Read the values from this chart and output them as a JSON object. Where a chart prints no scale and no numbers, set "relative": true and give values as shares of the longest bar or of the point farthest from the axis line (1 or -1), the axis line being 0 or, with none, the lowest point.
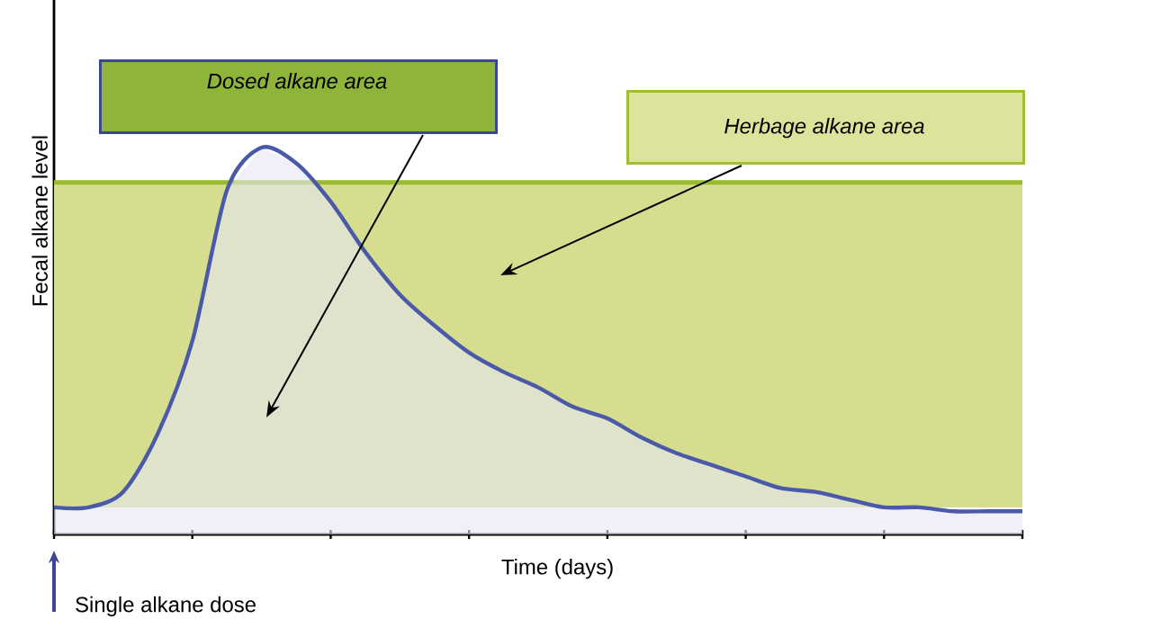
{
  "chart_data": {
    "type": "area",
    "relative": true,
    "xlabel": "Time (days)",
    "ylabel": "Fecal alkane level",
    "categories": [
      null,
      null,
      null,
      null,
      null,
      null,
      null,
      null,
      null,
      null,
      null,
      null,
      null,
      null,
      null,
      null,
      null,
      null,
      null,
      null,
      null,
      null,
      null,
      null,
      null,
      null,
      null,
      null,
      null
    ],
    "series": [
      {
        "color": "#4a5aa8",
        "values": [
          0.07,
          0.07,
          0.11,
          0.26,
          0.5,
          0.89,
          1.0,
          0.96,
          0.86,
          0.73,
          0.62,
          0.54,
          0.47,
          0.42,
          0.38,
          0.33,
          0.3,
          0.25,
          0.21,
          0.18,
          0.15,
          0.12,
          0.11,
          0.09,
          0.07,
          0.07,
          0.06,
          0.06,
          0.06
        ]
      }
    ],
    "bands": [
      {
        "axis": "y",
        "from": 0.07,
        "to": 0.91,
        "color": "#d6dd8e"
      }
    ],
    "ref_lines": [
      {
        "axis": "y",
        "value": 0.91,
        "color": "#9ab92e"
      }
    ],
    "annotations": [
      "Dosed alkane area",
      "Herbage alkane area",
      "Single alkane dose"
    ]
  }
}
